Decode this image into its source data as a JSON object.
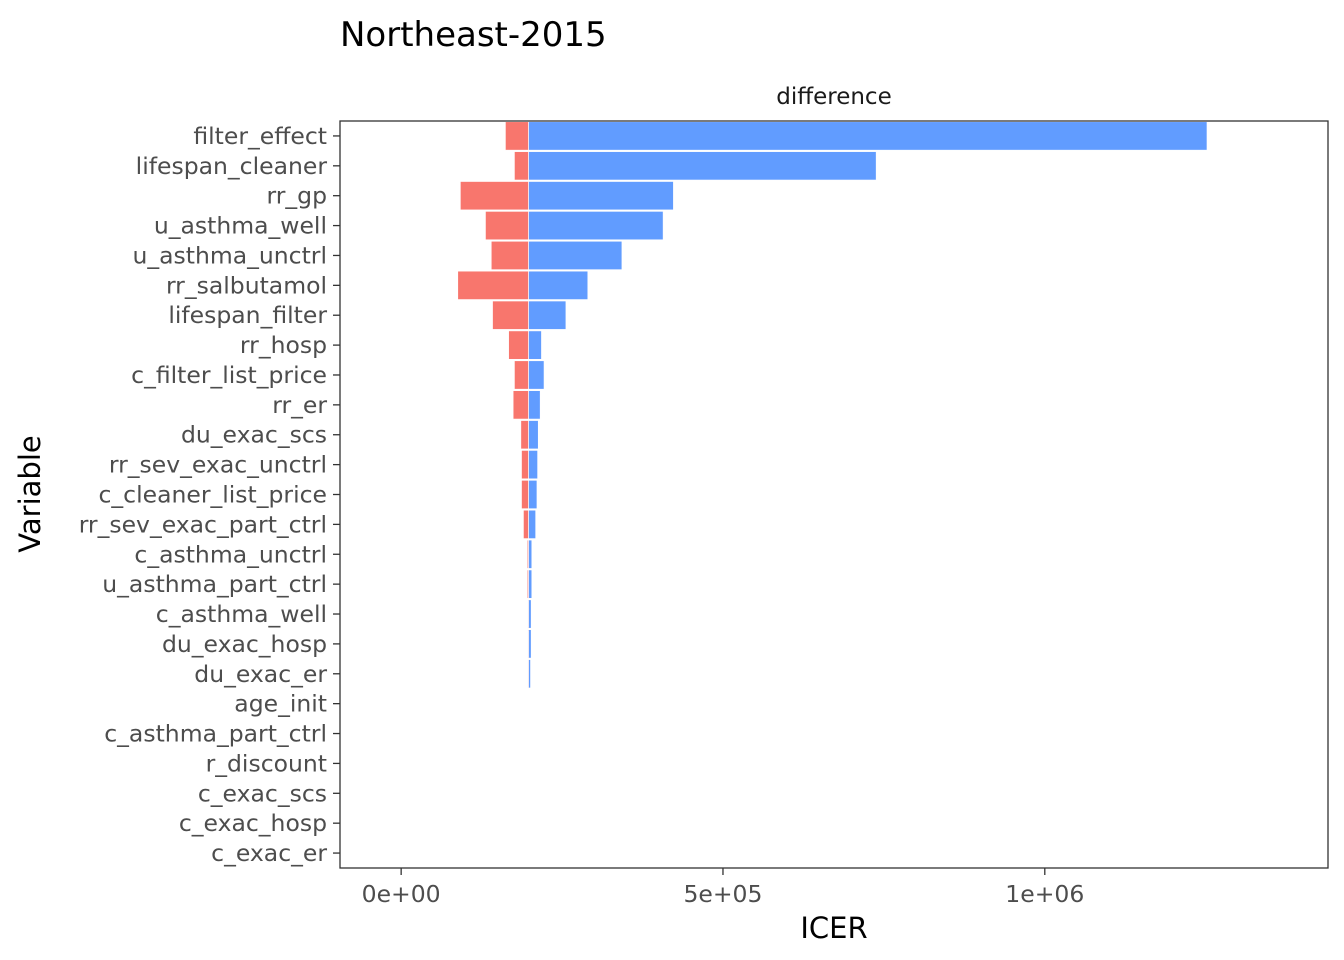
{
  "chart_data": {
    "type": "bar",
    "orientation": "horizontal",
    "title": "Northeast-2015",
    "facet_label": "difference",
    "xlabel": "ICER",
    "ylabel": "Variable",
    "baseline": 198000,
    "xlim": [
      -95000,
      1440000
    ],
    "x_ticks": [
      0,
      500000,
      1000000
    ],
    "x_tick_labels": [
      "0e+00",
      "5e+05",
      "1e+06"
    ],
    "grid": false,
    "legend": "none",
    "colors": {
      "low": "#F8766D",
      "high": "#619CFF"
    },
    "categories": [
      "filter_effect",
      "lifespan_cleaner",
      "rr_gp",
      "u_asthma_well",
      "u_asthma_unctrl",
      "rr_salbutamol",
      "lifespan_filter",
      "rr_hosp",
      "c_filter_list_price",
      "rr_er",
      "du_exac_scs",
      "rr_sev_exac_unctrl",
      "c_cleaner_list_price",
      "rr_sev_exac_part_ctrl",
      "c_asthma_unctrl",
      "u_asthma_part_ctrl",
      "c_asthma_well",
      "du_exac_hosp",
      "du_exac_er",
      "age_init",
      "c_asthma_part_ctrl",
      "r_discount",
      "c_exac_scs",
      "c_exac_hosp",
      "c_exac_er"
    ],
    "series": [
      {
        "values": [
          162000,
          176000,
          92000,
          131000,
          140000,
          88000,
          142000,
          167000,
          176000,
          174000,
          186000,
          187000,
          187000,
          190000,
          196000,
          196000,
          197000,
          197000,
          197000,
          198000,
          198000,
          198000,
          198000,
          198000,
          198000
        ]
      },
      {
        "values": [
          1252000,
          738000,
          423000,
          407000,
          343000,
          290000,
          256000,
          218000,
          222000,
          216000,
          213000,
          212000,
          211000,
          209000,
          203000,
          203000,
          202000,
          202000,
          201000,
          198500,
          198400,
          198300,
          198000,
          198000,
          198000
        ]
      }
    ]
  }
}
